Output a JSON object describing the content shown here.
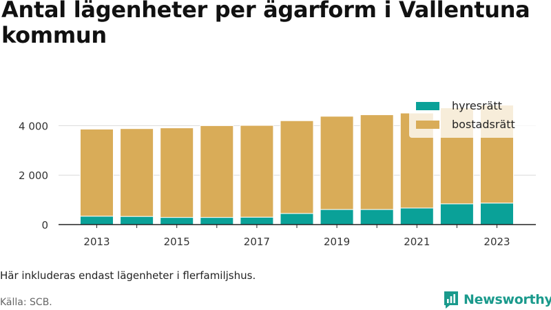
{
  "title": "Antal lägenheter per ägarform i Vallentuna kommun",
  "note": "Här inkluderas endast lägenheter i flerfamiljshus.",
  "source": "Källa: SCB.",
  "brand": {
    "name": "Newsworthy",
    "color": "#1a9a8c",
    "icon": "bar-chart-speech-icon"
  },
  "colors": {
    "hyresratt": "#0aa198",
    "bostadsratt": "#d9ac58",
    "grid": "#d9d9d9",
    "axis": "#222222"
  },
  "chart_data": {
    "type": "bar",
    "stacked": true,
    "categories": [
      2013,
      2014,
      2015,
      2016,
      2017,
      2018,
      2019,
      2020,
      2021,
      2022,
      2023
    ],
    "x_tick_labels": [
      "2013",
      "2015",
      "2017",
      "2019",
      "2021",
      "2023"
    ],
    "series": [
      {
        "name": "hyresrätt",
        "values": [
          340,
          330,
          290,
          290,
          300,
          450,
          610,
          610,
          670,
          840,
          870
        ]
      },
      {
        "name": "bostadsrätt",
        "values": [
          3520,
          3550,
          3620,
          3710,
          3710,
          3750,
          3770,
          3830,
          3840,
          3880,
          3960
        ]
      }
    ],
    "ylim": [
      0,
      5000
    ],
    "yticks": [
      0,
      2000,
      4000
    ],
    "ytick_labels": [
      "0",
      "2 000",
      "4 000"
    ],
    "grid": "horizontal",
    "legend_position": "top-right"
  }
}
